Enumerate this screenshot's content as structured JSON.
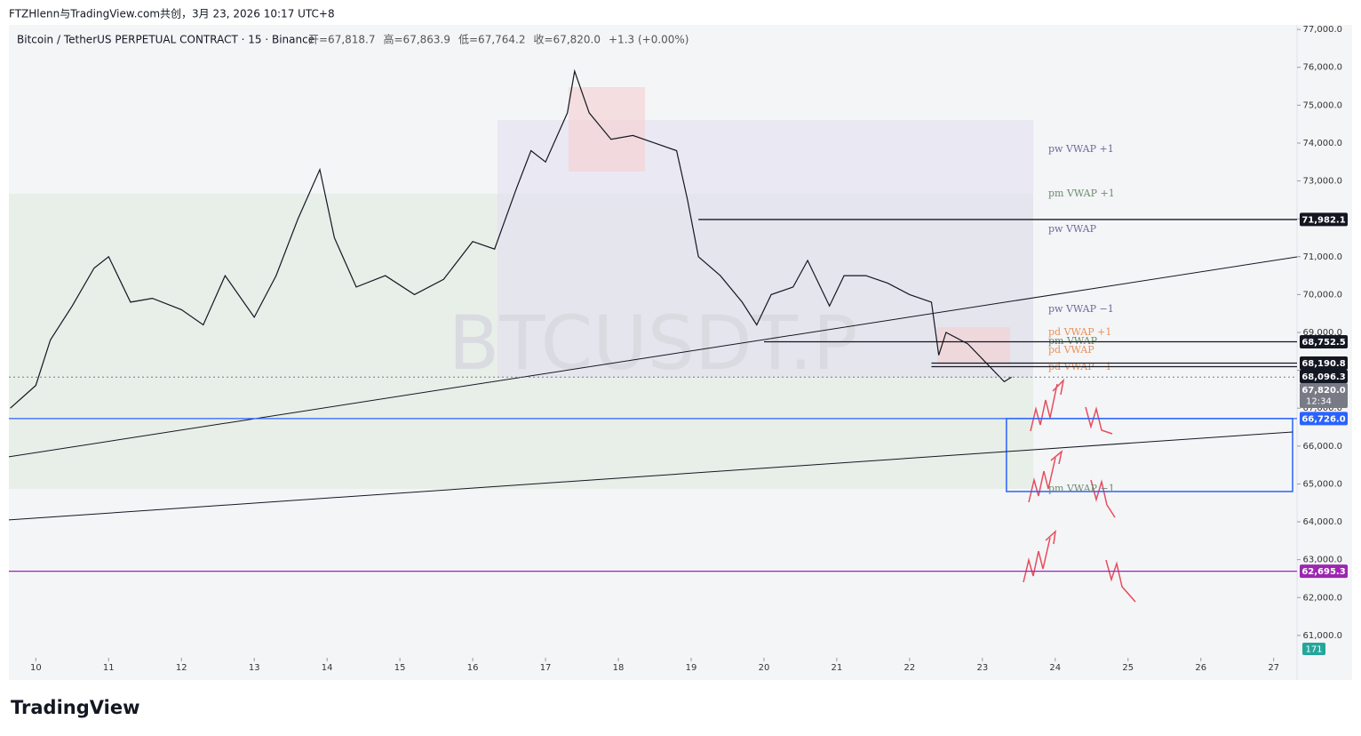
{
  "header": "FTZHlenn与TradingView.com共创，3月 23, 2026 10:17 UTC+8",
  "logo": "TradingView",
  "watermark": "BTCUSDT.P",
  "chart_data": {
    "type": "line",
    "title": "Bitcoin / TetherUS PERPETUAL CONTRACT · 15 · Binance",
    "ohlc": [
      "开=67,818.7",
      "高=67,863.9",
      "低=67,764.2",
      "收=67,820.0",
      "+1.3 (+0.00%)"
    ],
    "x": [
      9.65,
      10.0,
      10.2,
      10.5,
      10.8,
      11.0,
      11.3,
      11.6,
      12.0,
      12.3,
      12.6,
      13.0,
      13.3,
      13.6,
      13.9,
      14.1,
      14.4,
      14.8,
      15.2,
      15.6,
      16.0,
      16.3,
      16.6,
      16.8,
      17.0,
      17.3,
      17.4,
      17.6,
      17.9,
      18.2,
      18.5,
      18.8,
      18.95,
      19.1,
      19.4,
      19.7,
      19.9,
      20.1,
      20.4,
      20.6,
      20.9,
      21.1,
      21.4,
      21.7,
      22.0,
      22.3,
      22.4,
      22.5,
      22.8,
      23.0,
      23.3,
      23.4
    ],
    "values": [
      67000,
      67600,
      68800,
      69700,
      70700,
      71000,
      69800,
      69900,
      69600,
      69200,
      70500,
      69400,
      70500,
      72000,
      73300,
      71500,
      70200,
      70500,
      70000,
      70400,
      71400,
      71200,
      72800,
      73800,
      73500,
      74800,
      75900,
      74800,
      74100,
      74200,
      74000,
      73800,
      72500,
      71000,
      70500,
      69800,
      69200,
      70000,
      70200,
      70900,
      69700,
      70500,
      70500,
      70300,
      70000,
      69800,
      68400,
      69000,
      68700,
      68300,
      67700,
      67820
    ],
    "color": "#131722",
    "xlim": [
      9.63,
      27.26
    ],
    "xticks": [
      10,
      11,
      12,
      13,
      14,
      15,
      16,
      17,
      18,
      19,
      20,
      21,
      22,
      23,
      24,
      25,
      26,
      27
    ],
    "ylim": [
      60410,
      77120
    ],
    "yticks": [
      {
        "value": 77000,
        "label": "77,000.0"
      },
      {
        "value": 76000,
        "label": "76,000.0"
      },
      {
        "value": 75000,
        "label": "75,000.0"
      },
      {
        "value": 74000,
        "label": "74,000.0"
      },
      {
        "value": 73000,
        "label": "73,000.0"
      },
      {
        "value": 72000,
        "label": "72,000.0"
      },
      {
        "value": 71000,
        "label": "71,000.0"
      },
      {
        "value": 70000,
        "label": "70,000.0"
      },
      {
        "value": 69000,
        "label": "69,000.0"
      },
      {
        "value": 68000,
        "label": "68,000.0"
      },
      {
        "value": 67000,
        "label": "67,000.0"
      },
      {
        "value": 66000,
        "label": "66,000.0"
      },
      {
        "value": 65000,
        "label": "65,000.0"
      },
      {
        "value": 64000,
        "label": "64,000.0"
      },
      {
        "value": 63000,
        "label": "63,000.0"
      },
      {
        "value": 62000,
        "label": "62,000.0"
      },
      {
        "value": 61000,
        "label": "61,000.0"
      }
    ],
    "price_tags": [
      {
        "value": 71982.1,
        "label": "71,982.1",
        "color": "#131722",
        "from": 19.1
      },
      {
        "value": 68752.5,
        "label": "68,752.5",
        "color": "#131722",
        "from": 20.0
      },
      {
        "value": 68190.8,
        "label": "68,190.8",
        "color": "#131722",
        "from": 22.3
      },
      {
        "value": 68096.3,
        "label": "68,096.3",
        "color": "#131722",
        "from": 22.3
      },
      {
        "value": 67820.0,
        "label": "67,820.0",
        "color": "#787b86",
        "from": 9.63,
        "dashed": true,
        "sub": "12:34"
      },
      {
        "value": 66726.0,
        "label": "66,726.0",
        "color": "#2962ff",
        "from": 9.63
      },
      {
        "value": 62695.3,
        "label": "62,695.3",
        "color": "#9c27b0",
        "from": 9.63
      }
    ],
    "volume_tag": "171",
    "trendlines": [
      {
        "x": [
          9.63,
          27.35
        ],
        "y": [
          65716,
          70994
        ]
      },
      {
        "x": [
          9.63,
          27.26
        ],
        "y": [
          64050,
          66372
        ]
      }
    ],
    "zone": {
      "x": [
        23.33,
        27.26
      ],
      "y": [
        64800,
        66726
      ],
      "color": "#2962ff"
    },
    "annotations": [
      {
        "text": "pw VWAP +1",
        "value": 73833,
        "color": "#6b6b9e"
      },
      {
        "text": "pm VWAP +1",
        "value": 72660,
        "color": "#6e8c6e"
      },
      {
        "text": "pw VWAP",
        "value": 71720,
        "color": "#6b6b9e"
      },
      {
        "text": "pw VWAP −1",
        "value": 69610,
        "color": "#6b6b9e"
      },
      {
        "text": "pd VWAP +1",
        "value": 69000,
        "color": "#e8915a"
      },
      {
        "text": "pm VWAP",
        "value": 68765,
        "color": "#6e8c6e"
      },
      {
        "text": "pd VWAP",
        "value": 68530,
        "color": "#e8915a"
      },
      {
        "text": "pd VWAP −1",
        "value": 68085,
        "color": "#e8915a"
      },
      {
        "text": "pm VWAP −1",
        "value": 64870,
        "color": "#6e8c6e"
      }
    ]
  }
}
